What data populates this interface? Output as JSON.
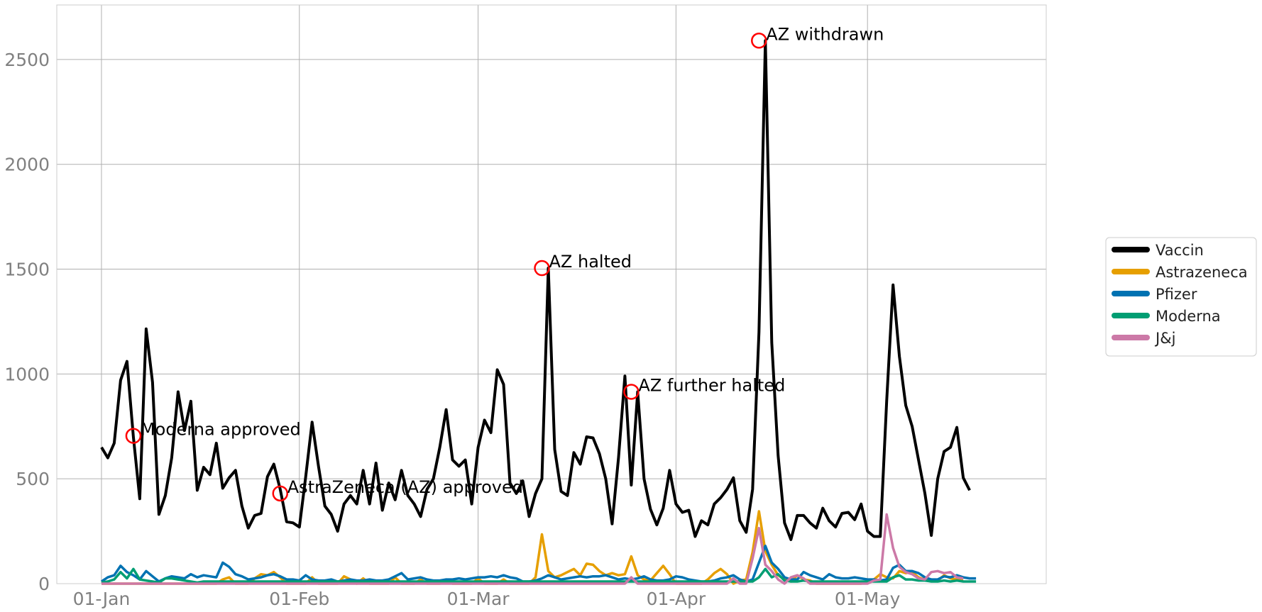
{
  "chart_data": {
    "type": "line",
    "title": "",
    "xlabel": "",
    "ylabel": "",
    "x_start": "2021-01-01",
    "x_end": "2021-05-16",
    "xlim": [
      "2020-12-25",
      "2021-05-29"
    ],
    "ylim": [
      0,
      2760
    ],
    "grid": true,
    "legend_position": "right",
    "x_ticks": [
      {
        "date": "2021-01-01",
        "label": "01-Jan"
      },
      {
        "date": "2021-02-01",
        "label": "01-Feb"
      },
      {
        "date": "2021-03-01",
        "label": "01-Mar"
      },
      {
        "date": "2021-04-01",
        "label": "01-Apr"
      },
      {
        "date": "2021-05-01",
        "label": "01-May"
      }
    ],
    "y_ticks": [
      {
        "value": 0,
        "label": "0"
      },
      {
        "value": 500,
        "label": "500"
      },
      {
        "value": 1000,
        "label": "1000"
      },
      {
        "value": 1500,
        "label": "1500"
      },
      {
        "value": 2000,
        "label": "2000"
      },
      {
        "value": 2500,
        "label": "2500"
      }
    ],
    "series": [
      {
        "name": "Vaccin",
        "color": "#000000",
        "values": [
          650,
          600,
          670,
          970,
          1060,
          700,
          405,
          1215,
          960,
          330,
          420,
          600,
          915,
          730,
          870,
          445,
          555,
          520,
          670,
          455,
          505,
          540,
          370,
          265,
          325,
          335,
          510,
          570,
          450,
          295,
          290,
          270,
          510,
          770,
          560,
          370,
          330,
          250,
          380,
          420,
          380,
          540,
          380,
          575,
          350,
          480,
          400,
          540,
          420,
          380,
          320,
          450,
          500,
          650,
          830,
          590,
          560,
          590,
          380,
          650,
          780,
          720,
          1020,
          950,
          480,
          430,
          490,
          320,
          430,
          500,
          1505,
          640,
          440,
          420,
          625,
          570,
          700,
          695,
          620,
          500,
          285,
          600,
          990,
          470,
          915,
          500,
          355,
          280,
          360,
          540,
          380,
          340,
          350,
          225,
          300,
          280,
          380,
          410,
          450,
          505,
          300,
          245,
          450,
          1200,
          2590,
          1150,
          610,
          290,
          210,
          325,
          325,
          290,
          265,
          360,
          300,
          270,
          335,
          340,
          305,
          380,
          250,
          225,
          225,
          870,
          1425,
          1085,
          850,
          750,
          590,
          430,
          230,
          500,
          630,
          650,
          745,
          505,
          445
        ]
      },
      {
        "name": "Astrazeneca",
        "color": "#E69F00",
        "values": [
          0,
          0,
          0,
          0,
          0,
          0,
          0,
          0,
          0,
          0,
          0,
          0,
          0,
          0,
          0,
          0,
          0,
          0,
          0,
          0,
          0,
          0,
          0,
          0,
          0,
          0,
          0,
          0,
          0,
          0,
          0,
          0,
          0,
          0,
          0,
          0,
          0,
          0,
          0,
          0,
          0,
          0,
          0,
          0,
          0,
          0,
          0,
          0,
          0,
          0,
          0,
          0,
          0,
          0,
          0,
          0,
          0,
          0,
          0,
          0,
          0,
          0,
          0,
          0,
          0,
          0,
          0,
          0,
          0,
          0,
          0,
          0,
          0,
          0,
          0,
          0,
          0,
          0,
          0,
          0,
          0,
          0,
          0,
          0,
          0,
          0,
          0,
          0,
          0,
          0,
          0,
          0,
          0,
          0,
          0,
          0,
          0,
          0,
          0,
          0,
          0,
          0,
          0,
          0,
          0,
          0,
          0,
          0,
          0,
          0,
          0,
          0,
          0,
          0,
          0,
          0,
          0,
          0,
          0,
          0,
          0,
          0,
          0,
          0,
          0,
          0,
          0,
          0,
          0,
          0,
          0,
          0,
          0,
          0,
          0,
          0
        ],
        "highlights": [
          [
            19,
            20
          ],
          [
            20,
            30
          ],
          [
            24,
            25
          ],
          [
            25,
            45
          ],
          [
            26,
            40
          ],
          [
            27,
            55
          ],
          [
            28,
            30
          ],
          [
            33,
            30
          ],
          [
            38,
            35
          ],
          [
            39,
            20
          ],
          [
            41,
            25
          ],
          [
            46,
            30
          ],
          [
            50,
            20
          ],
          [
            54,
            20
          ],
          [
            59,
            25
          ],
          [
            63,
            20
          ],
          [
            68,
            30
          ],
          [
            69,
            235
          ],
          [
            70,
            60
          ],
          [
            71,
            30
          ],
          [
            72,
            40
          ],
          [
            73,
            55
          ],
          [
            74,
            70
          ],
          [
            75,
            40
          ],
          [
            76,
            95
          ],
          [
            77,
            90
          ],
          [
            78,
            60
          ],
          [
            79,
            40
          ],
          [
            80,
            50
          ],
          [
            81,
            40
          ],
          [
            82,
            45
          ],
          [
            83,
            130
          ],
          [
            84,
            40
          ],
          [
            85,
            20
          ],
          [
            86,
            15
          ],
          [
            87,
            50
          ],
          [
            88,
            85
          ],
          [
            89,
            45
          ],
          [
            95,
            20
          ],
          [
            96,
            50
          ],
          [
            97,
            70
          ],
          [
            98,
            45
          ],
          [
            100,
            15
          ],
          [
            101,
            20
          ],
          [
            102,
            150
          ],
          [
            103,
            345
          ],
          [
            104,
            155
          ],
          [
            105,
            90
          ],
          [
            106,
            40
          ],
          [
            107,
            20
          ],
          [
            108,
            10
          ],
          [
            109,
            40
          ],
          [
            110,
            20
          ],
          [
            111,
            15
          ],
          [
            120,
            15
          ],
          [
            121,
            20
          ],
          [
            122,
            45
          ],
          [
            123,
            30
          ],
          [
            124,
            25
          ],
          [
            125,
            60
          ],
          [
            126,
            50
          ],
          [
            127,
            55
          ],
          [
            128,
            30
          ],
          [
            129,
            20
          ],
          [
            130,
            20
          ],
          [
            131,
            15
          ],
          [
            132,
            40
          ],
          [
            133,
            25
          ],
          [
            134,
            20
          ],
          [
            135,
            15
          ]
        ]
      },
      {
        "name": "Pfizer",
        "color": "#0072B2",
        "values": [
          10,
          30,
          40,
          85,
          55,
          40,
          20,
          60,
          35,
          10,
          25,
          35,
          30,
          25,
          45,
          30,
          40,
          35,
          30,
          100,
          80,
          45,
          35,
          20,
          25,
          30,
          40,
          45,
          35,
          20,
          20,
          15,
          40,
          20,
          15,
          15,
          20,
          10,
          15,
          20,
          15,
          15,
          20,
          15,
          15,
          20,
          35,
          50,
          20,
          25,
          30,
          20,
          15,
          15,
          20,
          20,
          25,
          20,
          25,
          30,
          30,
          35,
          30,
          40,
          30,
          25,
          10,
          10,
          15,
          25,
          40,
          30,
          20,
          25,
          30,
          35,
          30,
          35,
          35,
          40,
          30,
          20,
          25,
          20,
          25,
          35,
          20,
          15,
          15,
          20,
          35,
          30,
          20,
          15,
          10,
          10,
          15,
          25,
          30,
          40,
          20,
          10,
          20,
          100,
          180,
          100,
          70,
          30,
          20,
          20,
          55,
          40,
          30,
          20,
          45,
          30,
          25,
          25,
          30,
          25,
          20,
          20,
          15,
          20,
          75,
          90,
          60,
          60,
          50,
          30,
          20,
          20,
          35,
          30,
          40,
          30,
          25,
          25
        ]
      },
      {
        "name": "Moderna",
        "color": "#009E73",
        "values": [
          5,
          10,
          20,
          55,
          25,
          70,
          20,
          15,
          10,
          5,
          25,
          25,
          20,
          15,
          10,
          5,
          10,
          10,
          10,
          10,
          10,
          10,
          10,
          10,
          10,
          10,
          10,
          10,
          10,
          10,
          10,
          10,
          10,
          10,
          10,
          10,
          10,
          10,
          10,
          10,
          10,
          10,
          10,
          10,
          10,
          10,
          10,
          10,
          10,
          10,
          10,
          10,
          10,
          10,
          10,
          10,
          10,
          10,
          10,
          10,
          10,
          10,
          10,
          10,
          10,
          10,
          10,
          10,
          10,
          10,
          10,
          10,
          10,
          10,
          10,
          10,
          10,
          10,
          10,
          10,
          10,
          10,
          10,
          10,
          10,
          10,
          10,
          10,
          10,
          10,
          10,
          10,
          10,
          10,
          10,
          10,
          10,
          10,
          10,
          10,
          10,
          10,
          10,
          30,
          70,
          30,
          45,
          15,
          10,
          10,
          15,
          10,
          10,
          10,
          10,
          10,
          10,
          10,
          10,
          10,
          10,
          10,
          10,
          10,
          30,
          40,
          20,
          20,
          15,
          15,
          10,
          10,
          15,
          10,
          15,
          10,
          10,
          10
        ]
      },
      {
        "name": "J&j",
        "color": "#CC79A7",
        "values": [
          0,
          0,
          0,
          0,
          0,
          0,
          0,
          0,
          0,
          0,
          0,
          0,
          0,
          0,
          0,
          0,
          0,
          0,
          0,
          0,
          0,
          0,
          0,
          0,
          0,
          0,
          0,
          0,
          0,
          0,
          0,
          0,
          0,
          0,
          0,
          0,
          0,
          0,
          0,
          0,
          0,
          0,
          0,
          0,
          0,
          0,
          0,
          0,
          0,
          0,
          0,
          0,
          0,
          0,
          0,
          0,
          0,
          0,
          0,
          0,
          0,
          0,
          0,
          0,
          0,
          0,
          0,
          0,
          0,
          0,
          0,
          0,
          0,
          0,
          0,
          0,
          0,
          0,
          0,
          0,
          0,
          0,
          0,
          0,
          0,
          0,
          0,
          0,
          0,
          0,
          0,
          0,
          0,
          0,
          0,
          0,
          0,
          0,
          0,
          0,
          0,
          0,
          0,
          0,
          0,
          0,
          0,
          0,
          0,
          0,
          0,
          0,
          0,
          0,
          0,
          0,
          0,
          0,
          0,
          0,
          0,
          0,
          0,
          0,
          0,
          0,
          0,
          0,
          0,
          0,
          0,
          0,
          0,
          0,
          0,
          0
        ],
        "highlights": [
          [
            83,
            30
          ],
          [
            99,
            25
          ],
          [
            102,
            120
          ],
          [
            103,
            265
          ],
          [
            104,
            90
          ],
          [
            105,
            60
          ],
          [
            106,
            20
          ],
          [
            108,
            30
          ],
          [
            109,
            40
          ],
          [
            110,
            25
          ],
          [
            121,
            15
          ],
          [
            122,
            20
          ],
          [
            123,
            330
          ],
          [
            124,
            170
          ],
          [
            125,
            80
          ],
          [
            126,
            55
          ],
          [
            127,
            45
          ],
          [
            128,
            25
          ],
          [
            129,
            20
          ],
          [
            130,
            55
          ],
          [
            131,
            60
          ],
          [
            132,
            50
          ],
          [
            133,
            55
          ],
          [
            134,
            30
          ],
          [
            135,
            25
          ]
        ]
      }
    ],
    "annotations": [
      {
        "label": "Moderna approved",
        "date": "2021-01-06",
        "value": 705
      },
      {
        "label": "AstraZeneca (AZ) approved",
        "date": "2021-01-29",
        "value": 430
      },
      {
        "label": "AZ halted",
        "date": "2021-03-11",
        "value": 1505
      },
      {
        "label": "AZ further halted",
        "date": "2021-03-25",
        "value": 915
      },
      {
        "label": "AZ withdrawn",
        "date": "2021-04-14",
        "value": 2590
      }
    ]
  }
}
